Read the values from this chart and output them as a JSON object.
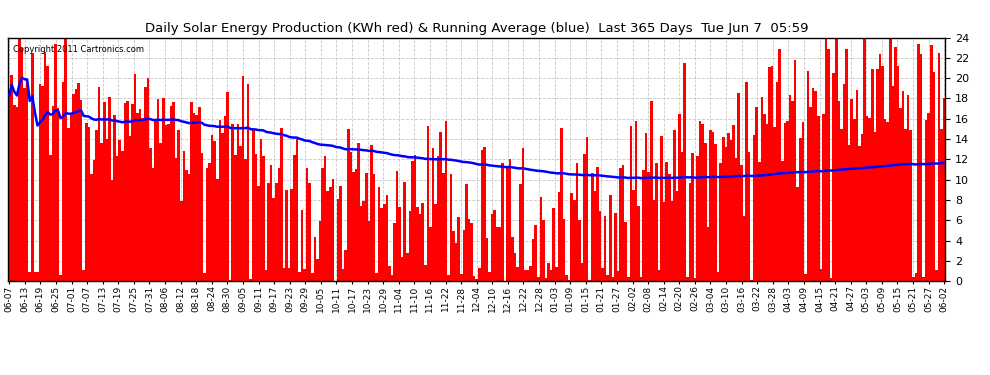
{
  "title": "Daily Solar Energy Production (KWh red) & Running Average (blue)  Last 365 Days  Tue Jun 7  05:59",
  "copyright": "Copyright 2011 Cartronics.com",
  "ylim": [
    0,
    24
  ],
  "yticks": [
    0.0,
    2.0,
    4.0,
    6.0,
    8.0,
    10.0,
    12.0,
    14.0,
    16.0,
    18.0,
    20.0,
    22.0,
    24.0
  ],
  "bar_color": "#FF0000",
  "avg_color": "#0000FF",
  "bg_color": "#FFFFFF",
  "grid_color": "#BBBBBB",
  "num_days": 365,
  "x_labels": [
    "06-07",
    "06-13",
    "06-19",
    "06-25",
    "07-01",
    "07-07",
    "07-13",
    "07-19",
    "07-25",
    "07-31",
    "08-06",
    "08-12",
    "08-18",
    "08-24",
    "08-30",
    "09-05",
    "09-11",
    "09-17",
    "09-23",
    "09-29",
    "10-05",
    "10-11",
    "10-17",
    "10-23",
    "10-29",
    "11-04",
    "11-10",
    "11-16",
    "11-22",
    "11-28",
    "12-04",
    "12-10",
    "12-16",
    "12-22",
    "12-28",
    "01-03",
    "01-09",
    "01-15",
    "01-21",
    "01-27",
    "02-02",
    "02-08",
    "02-14",
    "02-20",
    "02-26",
    "03-04",
    "03-10",
    "03-16",
    "03-22",
    "03-28",
    "04-03",
    "04-09",
    "04-15",
    "04-21",
    "04-27",
    "05-03",
    "05-09",
    "05-15",
    "05-21",
    "05-27",
    "06-02"
  ]
}
